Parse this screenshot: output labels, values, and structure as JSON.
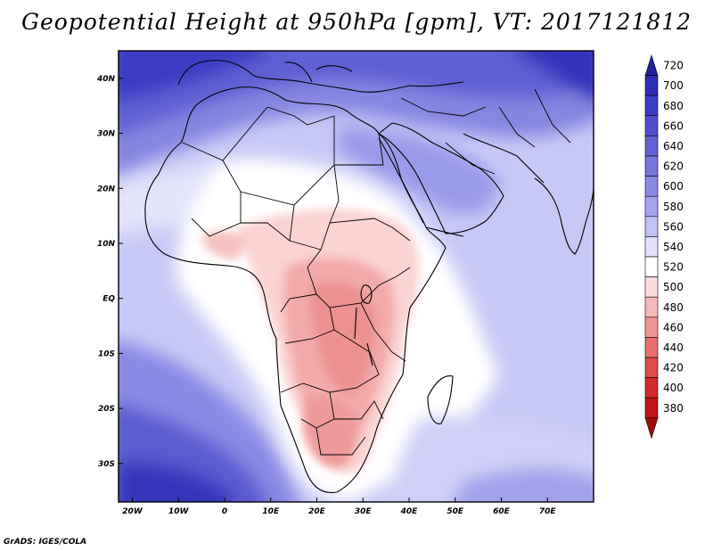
{
  "title": "Geopotential Height at 950hPa [gpm], VT: 2017121812",
  "credit": "GrADS: IGES/COLA",
  "map": {
    "variable": "Geopotential Height",
    "level": "950hPa",
    "units": "gpm",
    "valid_time": "2017121812",
    "lon_range": [
      -23,
      80
    ],
    "lat_range": [
      -37,
      45
    ],
    "lat_labels": [
      "40N",
      "30N",
      "20N",
      "10N",
      "EQ",
      "10S",
      "20S",
      "30S"
    ],
    "lat_values": [
      40,
      30,
      20,
      10,
      0,
      -10,
      -20,
      -30
    ],
    "lon_labels": [
      "20W",
      "10W",
      "0",
      "10E",
      "20E",
      "30E",
      "40E",
      "50E",
      "60E",
      "70E"
    ],
    "lon_values": [
      -20,
      -10,
      0,
      10,
      20,
      30,
      40,
      50,
      60,
      70
    ]
  },
  "colorbar": {
    "levels": [
      "720",
      "700",
      "680",
      "660",
      "640",
      "620",
      "600",
      "580",
      "560",
      "540",
      "520",
      "500",
      "480",
      "460",
      "440",
      "420",
      "400",
      "380"
    ],
    "colors": [
      "#23239e",
      "#2d2db4",
      "#3c3cc4",
      "#4f4fcd",
      "#6161d6",
      "#7676df",
      "#8b8be6",
      "#a4a4ee",
      "#c2c2f5",
      "#e2e2fb",
      "#ffffff",
      "#fbdcdc",
      "#f5b8b8",
      "#ef9494",
      "#e87070",
      "#df4c4c",
      "#d32a2a",
      "#c21414",
      "#9e0d0d"
    ]
  }
}
